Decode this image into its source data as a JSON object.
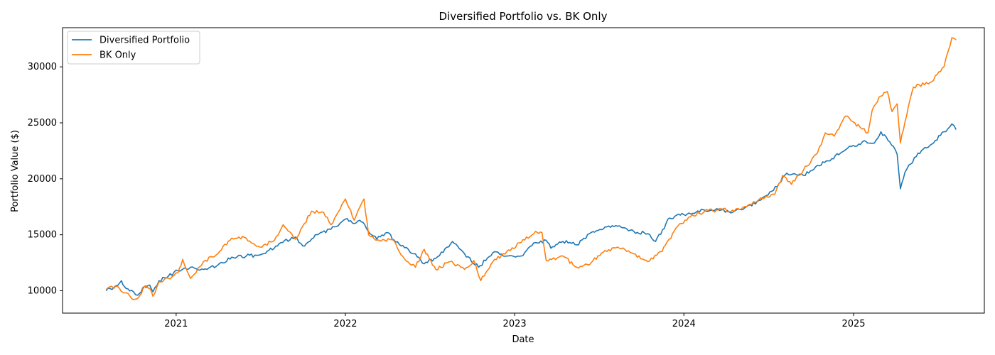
{
  "chart_data": {
    "type": "line",
    "title": "Diversified Portfolio vs. BK Only",
    "xlabel": "Date",
    "ylabel": "Portfolio Value ($)",
    "x_ticks": [
      "2021",
      "2022",
      "2023",
      "2024",
      "2025"
    ],
    "y_ticks": [
      10000,
      15000,
      20000,
      25000,
      30000
    ],
    "xlim": [
      "2020-05-01",
      "2025-10-10"
    ],
    "ylim": [
      8000,
      33500
    ],
    "grid": false,
    "legend_position": "top-left",
    "series": [
      {
        "name": "Diversified Portfolio",
        "color": "#1f77b4",
        "points": [
          [
            "2020-08-03",
            10000
          ],
          [
            "2020-08-20",
            10300
          ],
          [
            "2020-09-05",
            10900
          ],
          [
            "2020-09-15",
            10200
          ],
          [
            "2020-10-01",
            9900
          ],
          [
            "2020-10-10",
            9600
          ],
          [
            "2020-10-25",
            10400
          ],
          [
            "2020-11-05",
            10500
          ],
          [
            "2020-11-12",
            9900
          ],
          [
            "2020-11-25",
            10900
          ],
          [
            "2020-12-15",
            11300
          ],
          [
            "2021-01-05",
            11800
          ],
          [
            "2021-02-01",
            12100
          ],
          [
            "2021-03-01",
            11900
          ],
          [
            "2021-04-01",
            12300
          ],
          [
            "2021-05-01",
            13000
          ],
          [
            "2021-06-01",
            13100
          ],
          [
            "2021-07-01",
            13200
          ],
          [
            "2021-07-20",
            13600
          ],
          [
            "2021-08-15",
            14300
          ],
          [
            "2021-09-15",
            14800
          ],
          [
            "2021-10-01",
            14000
          ],
          [
            "2021-11-01",
            15000
          ],
          [
            "2021-12-01",
            15500
          ],
          [
            "2022-01-01",
            16400
          ],
          [
            "2022-01-20",
            16000
          ],
          [
            "2022-02-01",
            16300
          ],
          [
            "2022-02-15",
            15600
          ],
          [
            "2022-03-10",
            14600
          ],
          [
            "2022-04-01",
            15200
          ],
          [
            "2022-05-01",
            14000
          ],
          [
            "2022-06-01",
            13300
          ],
          [
            "2022-06-20",
            12400
          ],
          [
            "2022-07-15",
            12900
          ],
          [
            "2022-08-20",
            14400
          ],
          [
            "2022-09-15",
            13300
          ],
          [
            "2022-10-15",
            12100
          ],
          [
            "2022-11-15",
            13400
          ],
          [
            "2022-12-15",
            13100
          ],
          [
            "2023-01-15",
            13100
          ],
          [
            "2023-02-15",
            14300
          ],
          [
            "2023-03-10",
            14500
          ],
          [
            "2023-03-20",
            13800
          ],
          [
            "2023-04-15",
            14400
          ],
          [
            "2023-05-15",
            14100
          ],
          [
            "2023-06-15",
            15200
          ],
          [
            "2023-07-15",
            15700
          ],
          [
            "2023-08-15",
            15800
          ],
          [
            "2023-09-15",
            15300
          ],
          [
            "2023-10-15",
            15100
          ],
          [
            "2023-11-01",
            14400
          ],
          [
            "2023-12-01",
            16500
          ],
          [
            "2024-01-01",
            16800
          ],
          [
            "2024-02-15",
            17200
          ],
          [
            "2024-03-15",
            17300
          ],
          [
            "2024-04-15",
            17000
          ],
          [
            "2024-05-15",
            17500
          ],
          [
            "2024-06-15",
            18100
          ],
          [
            "2024-07-20",
            19300
          ],
          [
            "2024-08-10",
            20500
          ],
          [
            "2024-09-15",
            20300
          ],
          [
            "2024-10-15",
            21200
          ],
          [
            "2024-11-15",
            21800
          ],
          [
            "2024-12-15",
            22600
          ],
          [
            "2025-01-20",
            23300
          ],
          [
            "2025-02-15",
            23200
          ],
          [
            "2025-03-01",
            24200
          ],
          [
            "2025-03-20",
            23300
          ],
          [
            "2025-04-05",
            22200
          ],
          [
            "2025-04-12",
            19100
          ],
          [
            "2025-04-22",
            20600
          ],
          [
            "2025-05-20",
            22300
          ],
          [
            "2025-06-15",
            23000
          ],
          [
            "2025-07-15",
            24200
          ],
          [
            "2025-08-01",
            24900
          ],
          [
            "2025-08-10",
            24400
          ]
        ]
      },
      {
        "name": "BK Only",
        "color": "#ff7f0e",
        "points": [
          [
            "2020-08-03",
            10100
          ],
          [
            "2020-08-15",
            10400
          ],
          [
            "2020-09-01",
            10200
          ],
          [
            "2020-09-15",
            9800
          ],
          [
            "2020-10-01",
            9200
          ],
          [
            "2020-10-15",
            9600
          ],
          [
            "2020-10-25",
            10400
          ],
          [
            "2020-11-05",
            10200
          ],
          [
            "2020-11-12",
            9500
          ],
          [
            "2020-11-25",
            10800
          ],
          [
            "2020-12-15",
            11100
          ],
          [
            "2021-01-05",
            11600
          ],
          [
            "2021-01-15",
            12800
          ],
          [
            "2021-02-01",
            11100
          ],
          [
            "2021-03-01",
            12600
          ],
          [
            "2021-04-01",
            13300
          ],
          [
            "2021-05-01",
            14700
          ],
          [
            "2021-06-01",
            14700
          ],
          [
            "2021-07-01",
            13900
          ],
          [
            "2021-08-01",
            14500
          ],
          [
            "2021-08-20",
            15900
          ],
          [
            "2021-09-15",
            14600
          ],
          [
            "2021-10-20",
            17100
          ],
          [
            "2021-11-15",
            17000
          ],
          [
            "2021-12-01",
            15900
          ],
          [
            "2022-01-01",
            18200
          ],
          [
            "2022-01-20",
            16300
          ],
          [
            "2022-02-10",
            18200
          ],
          [
            "2022-02-20",
            15000
          ],
          [
            "2022-03-15",
            14500
          ],
          [
            "2022-04-15",
            14500
          ],
          [
            "2022-05-01",
            13200
          ],
          [
            "2022-06-01",
            12100
          ],
          [
            "2022-06-20",
            13700
          ],
          [
            "2022-07-15",
            11900
          ],
          [
            "2022-08-15",
            12600
          ],
          [
            "2022-09-15",
            11900
          ],
          [
            "2022-10-05",
            12700
          ],
          [
            "2022-10-20",
            10900
          ],
          [
            "2022-11-15",
            12600
          ],
          [
            "2022-12-15",
            13500
          ],
          [
            "2023-01-15",
            14300
          ],
          [
            "2023-02-15",
            15300
          ],
          [
            "2023-03-01",
            15200
          ],
          [
            "2023-03-10",
            12700
          ],
          [
            "2023-04-15",
            13100
          ],
          [
            "2023-05-15",
            12100
          ],
          [
            "2023-06-15",
            12500
          ],
          [
            "2023-07-15",
            13600
          ],
          [
            "2023-08-15",
            13800
          ],
          [
            "2023-09-15",
            13300
          ],
          [
            "2023-10-15",
            12600
          ],
          [
            "2023-11-15",
            13500
          ],
          [
            "2023-12-15",
            15600
          ],
          [
            "2024-01-15",
            16600
          ],
          [
            "2024-02-15",
            17100
          ],
          [
            "2024-03-15",
            17200
          ],
          [
            "2024-04-15",
            17200
          ],
          [
            "2024-05-15",
            17500
          ],
          [
            "2024-06-15",
            18300
          ],
          [
            "2024-07-15",
            18600
          ],
          [
            "2024-08-01",
            20300
          ],
          [
            "2024-08-20",
            19500
          ],
          [
            "2024-09-15",
            20800
          ],
          [
            "2024-10-15",
            22300
          ],
          [
            "2024-11-01",
            24100
          ],
          [
            "2024-11-20",
            23800
          ],
          [
            "2024-12-15",
            25600
          ],
          [
            "2025-01-15",
            24600
          ],
          [
            "2025-02-01",
            24100
          ],
          [
            "2025-02-10",
            26100
          ],
          [
            "2025-02-25",
            27300
          ],
          [
            "2025-03-15",
            27800
          ],
          [
            "2025-03-25",
            26000
          ],
          [
            "2025-04-05",
            26700
          ],
          [
            "2025-04-12",
            23200
          ],
          [
            "2025-04-22",
            25100
          ],
          [
            "2025-05-10",
            28200
          ],
          [
            "2025-06-15",
            28600
          ],
          [
            "2025-07-15",
            30000
          ],
          [
            "2025-08-01",
            32600
          ],
          [
            "2025-08-10",
            32400
          ]
        ]
      }
    ]
  }
}
